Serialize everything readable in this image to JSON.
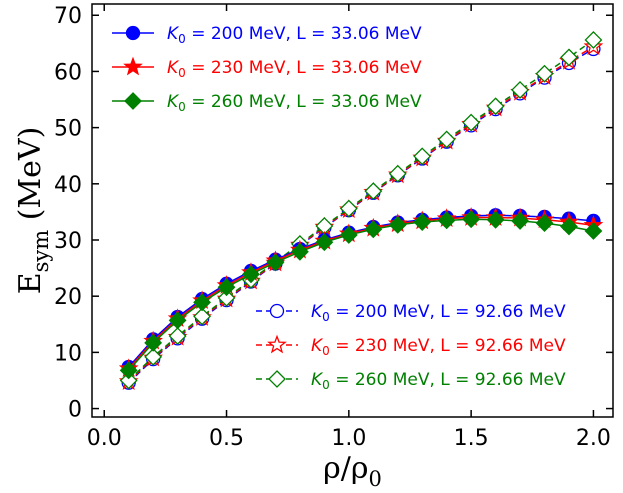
{
  "chart_data": {
    "type": "line",
    "xlabel": "ρ/ρ",
    "xlabel_sub": "0",
    "ylabel": "E",
    "ylabel_sub": "sym",
    "ylabel_unit": " (MeV)",
    "xlim": [
      -0.05,
      2.08
    ],
    "ylim": [
      -1.5,
      72
    ],
    "xticks": [
      0.0,
      0.5,
      1.0,
      1.5,
      2.0
    ],
    "xtick_labels": [
      "0.0",
      "0.5",
      "1.0",
      "1.5",
      "2.0"
    ],
    "yticks": [
      0,
      10,
      20,
      30,
      40,
      50,
      60,
      70
    ],
    "ytick_labels": [
      "0",
      "10",
      "20",
      "30",
      "40",
      "50",
      "60",
      "70"
    ],
    "grid": false,
    "x": [
      0.1,
      0.2,
      0.3,
      0.4,
      0.5,
      0.6,
      0.7,
      0.8,
      0.9,
      1.0,
      1.1,
      1.2,
      1.3,
      1.4,
      1.5,
      1.6,
      1.7,
      1.8,
      1.9,
      2.0
    ],
    "legends": [
      {
        "position": "top-left",
        "entries": [
          {
            "k0": "200",
            "l": "33.06",
            "series": 0
          },
          {
            "k0": "230",
            "l": "33.06",
            "series": 1
          },
          {
            "k0": "260",
            "l": "33.06",
            "series": 2
          }
        ]
      },
      {
        "position": "lower-right",
        "entries": [
          {
            "k0": "200",
            "l": "92.66",
            "series": 3
          },
          {
            "k0": "230",
            "l": "92.66",
            "series": 4
          },
          {
            "k0": "260",
            "l": "92.66",
            "series": 5
          }
        ]
      }
    ],
    "label_parts": {
      "k_symbol": "K",
      "k_sub": "0",
      "eq": " = ",
      "unit": " MeV, L = ",
      "tail": " MeV"
    },
    "series": [
      {
        "color": "#0000ff",
        "marker": "circle",
        "filled": true,
        "line": "solid",
        "values": [
          7.4,
          12.3,
          16.3,
          19.5,
          22.2,
          24.5,
          26.5,
          28.4,
          30.0,
          31.3,
          32.3,
          33.1,
          33.6,
          34.0,
          34.3,
          34.4,
          34.3,
          34.1,
          33.8,
          33.4
        ]
      },
      {
        "color": "#ff0000",
        "marker": "star",
        "filled": true,
        "line": "solid",
        "values": [
          7.1,
          12.0,
          16.0,
          19.2,
          21.9,
          24.2,
          26.3,
          28.2,
          29.8,
          31.1,
          32.1,
          32.9,
          33.4,
          33.8,
          34.0,
          34.0,
          33.9,
          33.6,
          33.2,
          32.6
        ]
      },
      {
        "color": "#008000",
        "marker": "diamond",
        "filled": true,
        "line": "solid",
        "values": [
          6.8,
          11.7,
          15.7,
          18.9,
          21.6,
          23.9,
          26.0,
          27.9,
          29.6,
          30.9,
          31.9,
          32.7,
          33.2,
          33.5,
          33.7,
          33.6,
          33.4,
          33.0,
          32.4,
          31.6
        ]
      },
      {
        "color": "#0000ff",
        "marker": "circle",
        "filled": false,
        "line": "dashed",
        "values": [
          4.6,
          8.8,
          12.5,
          16.0,
          19.3,
          22.6,
          25.8,
          29.0,
          32.2,
          35.3,
          38.4,
          41.5,
          44.5,
          47.5,
          50.4,
          53.3,
          56.1,
          58.9,
          61.5,
          64.0
        ]
      },
      {
        "color": "#ff0000",
        "marker": "star",
        "filled": false,
        "line": "dashed",
        "values": [
          4.8,
          9.0,
          12.7,
          16.2,
          19.5,
          22.7,
          25.9,
          29.1,
          32.3,
          35.4,
          38.5,
          41.6,
          44.6,
          47.6,
          50.6,
          53.5,
          56.3,
          59.1,
          61.8,
          64.4
        ]
      },
      {
        "color": "#008000",
        "marker": "diamond",
        "filled": false,
        "line": "dashed",
        "values": [
          5.0,
          9.2,
          12.9,
          16.4,
          19.7,
          22.9,
          26.1,
          29.3,
          32.5,
          35.6,
          38.7,
          41.8,
          44.9,
          47.9,
          50.9,
          53.8,
          56.7,
          59.6,
          62.5,
          65.6
        ]
      }
    ]
  }
}
